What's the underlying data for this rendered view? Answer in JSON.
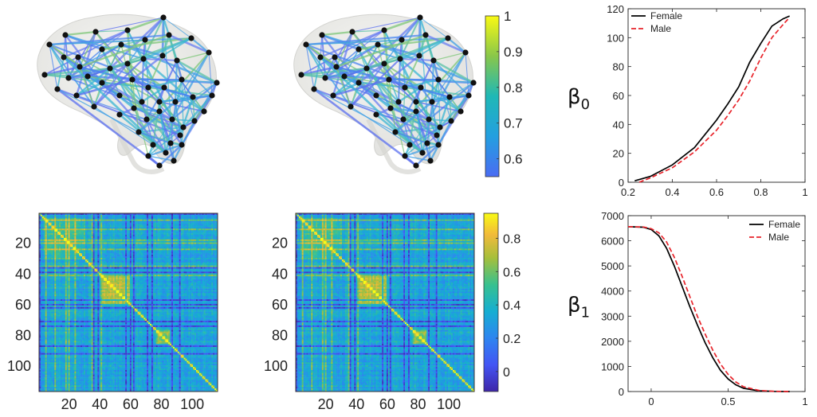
{
  "chart_data": [
    {
      "type": "network",
      "panel": "brain-network-female",
      "note_colorbar": "shared"
    },
    {
      "type": "network",
      "panel": "brain-network-male"
    },
    {
      "type": "colorbar",
      "panel": "network-colorbar",
      "range": [
        0.55,
        1
      ],
      "ticks": [
        "1",
        "0.9",
        "0.8",
        "0.7",
        "0.6"
      ],
      "tick_values": [
        1,
        0.9,
        0.8,
        0.7,
        0.6
      ],
      "colormap": "parula"
    },
    {
      "type": "heatmap",
      "panel": "correlation-matrix-female",
      "size": 116,
      "ticks": [
        "20",
        "40",
        "60",
        "80",
        "100"
      ],
      "tick_values": [
        20,
        40,
        60,
        80,
        100
      ]
    },
    {
      "type": "heatmap",
      "panel": "correlation-matrix-male",
      "size": 116,
      "ticks": [
        "20",
        "40",
        "60",
        "80",
        "100"
      ],
      "tick_values": [
        20,
        40,
        60,
        80,
        100
      ]
    },
    {
      "type": "colorbar",
      "panel": "matrix-colorbar",
      "range": [
        -0.12,
        0.95
      ],
      "ticks": [
        "0.8",
        "0.6",
        "0.4",
        "0.2",
        "0"
      ],
      "tick_values": [
        0.8,
        0.6,
        0.4,
        0.2,
        0
      ],
      "colormap": "parula"
    },
    {
      "type": "line",
      "panel": "beta0-plot",
      "ylabel_symbol": "β",
      "ylabel_subscript": "0",
      "xlim": [
        0.2,
        1
      ],
      "ylim": [
        0,
        120
      ],
      "xticks": [
        "0.2",
        "0.4",
        "0.6",
        "0.8",
        "1"
      ],
      "xtick_values": [
        0.2,
        0.4,
        0.6,
        0.8,
        1
      ],
      "yticks": [
        "0",
        "20",
        "40",
        "60",
        "80",
        "100",
        "120"
      ],
      "ytick_values": [
        0,
        20,
        40,
        60,
        80,
        100,
        120
      ],
      "legend_position": "top-left",
      "series": [
        {
          "name": "Female",
          "color": "#000000",
          "dash": "solid",
          "x": [
            0.23,
            0.3,
            0.4,
            0.5,
            0.6,
            0.65,
            0.7,
            0.75,
            0.8,
            0.85,
            0.9,
            0.93
          ],
          "y": [
            1,
            4,
            12,
            24,
            43,
            54,
            66,
            83,
            96,
            108,
            113,
            115
          ]
        },
        {
          "name": "Male",
          "color": "#e8242b",
          "dash": "dashed",
          "x": [
            0.25,
            0.3,
            0.4,
            0.5,
            0.6,
            0.65,
            0.7,
            0.75,
            0.8,
            0.85,
            0.9,
            0.93
          ],
          "y": [
            0,
            3,
            10,
            21,
            36,
            46,
            57,
            70,
            86,
            100,
            109,
            114
          ]
        }
      ]
    },
    {
      "type": "line",
      "panel": "beta1-plot",
      "ylabel_symbol": "β",
      "ylabel_subscript": "1",
      "xlim": [
        -0.15,
        1
      ],
      "ylim": [
        0,
        7000
      ],
      "xticks": [
        "0",
        "0.5",
        "1"
      ],
      "xtick_values": [
        0,
        0.5,
        1
      ],
      "yticks": [
        "0",
        "1000",
        "2000",
        "3000",
        "4000",
        "5000",
        "6000",
        "7000"
      ],
      "ytick_values": [
        0,
        1000,
        2000,
        3000,
        4000,
        5000,
        6000,
        7000
      ],
      "legend_position": "top-right",
      "series": [
        {
          "name": "Female",
          "color": "#000000",
          "dash": "solid",
          "x": [
            -0.15,
            -0.05,
            0,
            0.05,
            0.1,
            0.15,
            0.2,
            0.25,
            0.3,
            0.35,
            0.4,
            0.45,
            0.5,
            0.55,
            0.6,
            0.7,
            0.8,
            0.9
          ],
          "y": [
            6560,
            6540,
            6450,
            6200,
            5700,
            5000,
            4200,
            3400,
            2650,
            1950,
            1350,
            850,
            500,
            270,
            130,
            30,
            5,
            0
          ]
        },
        {
          "name": "Male",
          "color": "#e8242b",
          "dash": "dashed",
          "x": [
            -0.15,
            -0.05,
            0,
            0.05,
            0.1,
            0.15,
            0.2,
            0.25,
            0.3,
            0.35,
            0.4,
            0.45,
            0.5,
            0.55,
            0.6,
            0.7,
            0.8,
            0.9
          ],
          "y": [
            6560,
            6550,
            6480,
            6320,
            5950,
            5350,
            4600,
            3800,
            3000,
            2300,
            1650,
            1100,
            680,
            380,
            190,
            45,
            8,
            0
          ]
        }
      ]
    }
  ]
}
